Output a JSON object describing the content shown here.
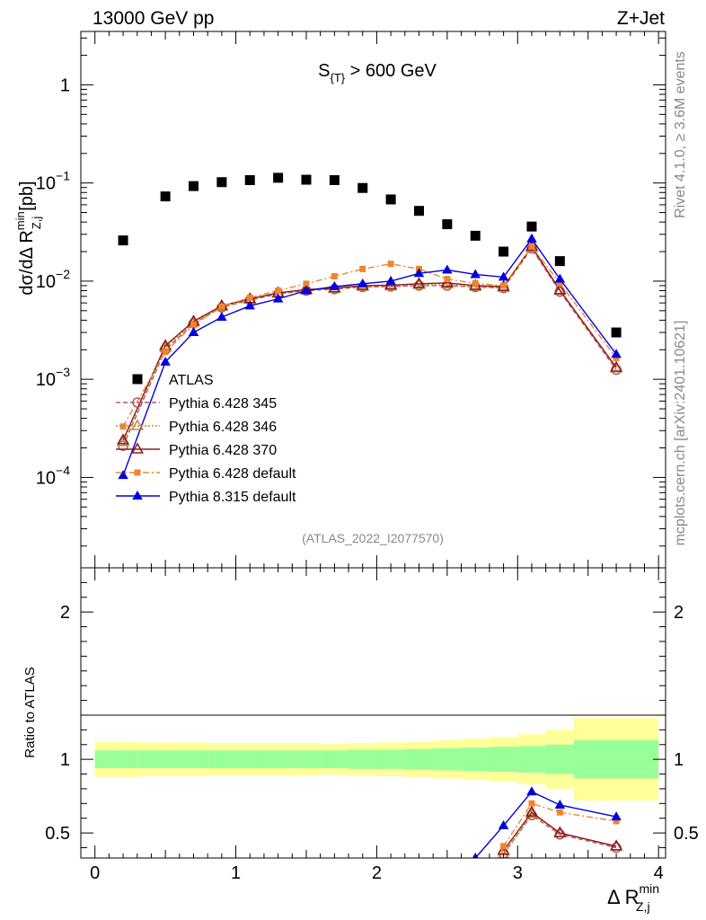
{
  "header": {
    "energy_label": "13000 GeV pp",
    "process_label": "Z+Jet"
  },
  "side_labels": {
    "rivet": "Rivet 4.1.0, ≥ 3.6M events",
    "mcplots": "mcplots.cern.ch [arXiv:2401.10621]"
  },
  "chart_data": {
    "type": "scatter",
    "title": "S_{T} > 600 GeV",
    "title_main": "S",
    "title_sub": "{T}",
    "title_rest": " > 600 GeV",
    "analysis_id": "(ATLAS_2022_I2077570)",
    "xlabel": "Δ R",
    "xlabel_sup": "min",
    "xlabel_sub": "Z,j",
    "ylabel": "dσ/dΔ R",
    "ylabel_sup": "min",
    "ylabel_sub": "Z,j",
    "ylabel_unit": "[pb]",
    "ratio_ylabel": "Ratio to ATLAS",
    "xlim": [
      -0.1,
      4.05
    ],
    "ylim_main": [
      1.2e-05,
      3.5
    ],
    "ylim_ratio": [
      0.33,
      2.3
    ],
    "x_ticks": [
      "0",
      "1",
      "2",
      "3",
      "4"
    ],
    "y_ticks_main": [
      {
        "value": 1,
        "mant": "1",
        "exp": ""
      },
      {
        "value": 0.1,
        "mant": "10",
        "exp": "−1"
      },
      {
        "value": 0.01,
        "mant": "10",
        "exp": "−2"
      },
      {
        "value": 0.001,
        "mant": "10",
        "exp": "−3"
      },
      {
        "value": 0.0001,
        "mant": "10",
        "exp": "−4"
      }
    ],
    "y_ticks_ratio": [
      "0.5",
      "1",
      "2"
    ],
    "x": [
      0.2,
      0.5,
      0.7,
      0.9,
      1.1,
      1.3,
      1.5,
      1.7,
      1.9,
      2.1,
      2.3,
      2.5,
      2.7,
      2.9,
      3.1,
      3.3,
      3.7
    ],
    "band_edges": [
      0.0,
      0.3,
      0.6,
      0.8,
      1.0,
      1.2,
      1.4,
      1.6,
      1.8,
      2.0,
      2.2,
      2.4,
      2.6,
      2.8,
      3.0,
      3.2,
      3.4,
      4.0
    ],
    "band_inner_halfwidth": [
      0.06,
      0.06,
      0.06,
      0.06,
      0.06,
      0.06,
      0.06,
      0.06,
      0.065,
      0.065,
      0.07,
      0.075,
      0.08,
      0.085,
      0.09,
      0.1,
      0.13
    ],
    "band_outer_halfwidth": [
      0.12,
      0.115,
      0.115,
      0.11,
      0.11,
      0.11,
      0.11,
      0.105,
      0.11,
      0.115,
      0.12,
      0.13,
      0.14,
      0.15,
      0.17,
      0.2,
      0.28
    ],
    "series": [
      {
        "name": "ATLAS",
        "color": "#000000",
        "marker": "square",
        "line": "none",
        "values": [
          0.026,
          0.073,
          0.093,
          0.102,
          0.107,
          0.113,
          0.108,
          0.107,
          0.089,
          0.068,
          0.052,
          0.038,
          0.029,
          0.02,
          0.036,
          0.016,
          0.003
        ]
      },
      {
        "name": "Pythia 6.428 345",
        "color": "#b4586f",
        "marker": "circle-open",
        "line": "dashed",
        "values": [
          0.00021,
          0.002,
          0.0037,
          0.0054,
          0.0064,
          0.0074,
          0.008,
          0.0083,
          0.0087,
          0.0088,
          0.009,
          0.009,
          0.0087,
          0.0085,
          0.0215,
          0.0078,
          0.00125
        ],
        "ratio": [
          null,
          null,
          null,
          null,
          null,
          null,
          null,
          null,
          null,
          null,
          null,
          null,
          null,
          0.36,
          0.62,
          0.49,
          0.4
        ]
      },
      {
        "name": "Pythia 6.428 346",
        "color": "#c08a2e",
        "marker": "triangle-open",
        "line": "dotted",
        "values": [
          0.00023,
          0.0021,
          0.0038,
          0.0055,
          0.0065,
          0.0075,
          0.0081,
          0.0084,
          0.0088,
          0.0089,
          0.0092,
          0.0093,
          0.0088,
          0.0086,
          0.022,
          0.008,
          0.0013
        ],
        "ratio": [
          null,
          null,
          null,
          null,
          null,
          null,
          null,
          null,
          null,
          null,
          null,
          null,
          null,
          0.35,
          0.63,
          0.5,
          0.41
        ]
      },
      {
        "name": "Pythia 6.428 370",
        "color": "#8b1a1a",
        "marker": "triangle-open",
        "line": "solid",
        "values": [
          0.00024,
          0.0022,
          0.0039,
          0.0056,
          0.0066,
          0.0076,
          0.0082,
          0.0085,
          0.009,
          0.0091,
          0.0094,
          0.0096,
          0.009,
          0.0088,
          0.0225,
          0.0081,
          0.00132
        ],
        "ratio": [
          null,
          null,
          null,
          null,
          null,
          null,
          null,
          null,
          null,
          null,
          null,
          null,
          null,
          0.38,
          0.64,
          0.5,
          0.41
        ]
      },
      {
        "name": "Pythia 6.428 default",
        "color": "#f0852d",
        "marker": "square",
        "line": "dashdot",
        "values": [
          0.00033,
          0.0019,
          0.0036,
          0.0055,
          0.0068,
          0.008,
          0.0094,
          0.0112,
          0.0133,
          0.015,
          0.0133,
          0.0105,
          0.0095,
          0.009,
          0.0225,
          0.0095,
          0.00165
        ],
        "ratio": [
          null,
          null,
          null,
          null,
          null,
          null,
          null,
          null,
          null,
          null,
          null,
          null,
          null,
          0.41,
          0.7,
          0.64,
          0.58
        ]
      },
      {
        "name": "Pythia 8.315 default",
        "color": "#0000dd",
        "marker": "triangle",
        "line": "solid",
        "values": [
          0.000105,
          0.0015,
          0.003,
          0.0043,
          0.0056,
          0.0066,
          0.008,
          0.0088,
          0.0094,
          0.01,
          0.012,
          0.013,
          0.0117,
          0.011,
          0.027,
          0.0105,
          0.0018
        ],
        "ratio": [
          null,
          null,
          null,
          null,
          null,
          null,
          null,
          null,
          null,
          null,
          null,
          null,
          0.33,
          0.55,
          0.78,
          0.69,
          0.61
        ]
      }
    ]
  }
}
